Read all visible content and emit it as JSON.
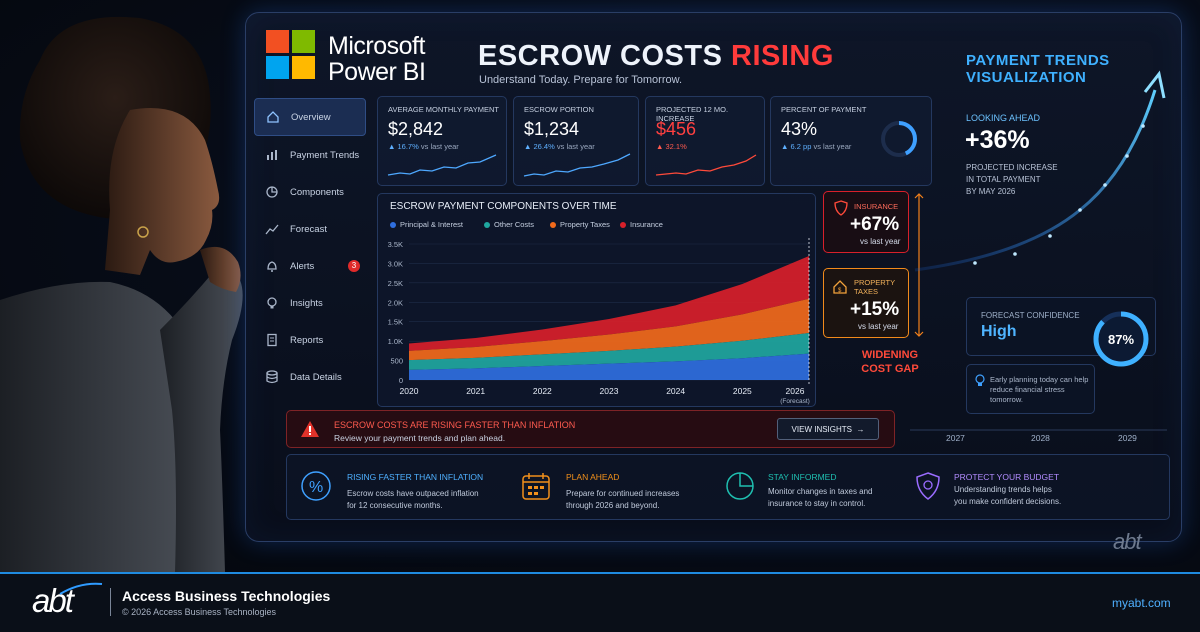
{
  "brand": {
    "line1": "Microsoft",
    "line2": "Power BI",
    "logo_colors": [
      "#f25022",
      "#7fba00",
      "#00a4ef",
      "#ffb900"
    ]
  },
  "header": {
    "title_main": "ESCROW COSTS",
    "title_accent": "RISING",
    "subtitle": "Understand Today.  Prepare for Tomorrow."
  },
  "sidebar": {
    "items": [
      {
        "label": "Overview",
        "icon": "home-icon",
        "active": true
      },
      {
        "label": "Payment Trends",
        "icon": "bar-chart-icon"
      },
      {
        "label": "Components",
        "icon": "pie-chart-icon"
      },
      {
        "label": "Forecast",
        "icon": "trend-line-icon"
      },
      {
        "label": "Alerts",
        "icon": "bell-icon",
        "badge": "3"
      },
      {
        "label": "Insights",
        "icon": "lightbulb-icon"
      },
      {
        "label": "Reports",
        "icon": "document-icon"
      },
      {
        "label": "Data Details",
        "icon": "database-icon"
      }
    ]
  },
  "kpis": [
    {
      "label": "Average Monthly Payment",
      "value": "$2,842",
      "change": "▲ 16.7%",
      "change_sub": "vs last year"
    },
    {
      "label": "Escrow Portion",
      "value": "$1,234",
      "change": "▲ 26.4%",
      "change_sub": "vs last year"
    },
    {
      "label": "Projected 12 Mo. Increase",
      "value": "$456",
      "change": "▲ 32.1%",
      "change_sub": ""
    },
    {
      "label": "Percent of Payment",
      "value": "43%",
      "change": "▲ 6.2 pp",
      "change_sub": "vs last year",
      "gauge_fraction": 0.43
    }
  ],
  "chart_data": {
    "type": "area",
    "title": "Escrow Payment Components Over Time",
    "x": [
      "2020",
      "2021",
      "2022",
      "2023",
      "2024",
      "2025",
      "2026"
    ],
    "x_note": "(Forecast)",
    "ylim": [
      0,
      3500
    ],
    "yticks": [
      0,
      500,
      1000,
      1500,
      2000,
      2500,
      3000,
      3500
    ],
    "ytick_labels": [
      "0",
      "500",
      "1.0K",
      "1.5K",
      "2.0K",
      "2.5K",
      "3.0K",
      "3.5K"
    ],
    "stacked": true,
    "legend_position": "top-left",
    "series": [
      {
        "name": "Principal & Interest",
        "color": "#2f6fe0",
        "values": [
          260,
          300,
          360,
          420,
          480,
          560,
          680
        ]
      },
      {
        "name": "Other Costs",
        "color": "#1fa7a0",
        "values": [
          250,
          270,
          300,
          330,
          380,
          450,
          530
        ]
      },
      {
        "name": "Property Taxes",
        "color": "#f26a1b",
        "values": [
          240,
          280,
          340,
          420,
          520,
          680,
          880
        ]
      },
      {
        "name": "Insurance",
        "color": "#d8202a",
        "values": [
          190,
          230,
          300,
          400,
          540,
          780,
          1100
        ]
      }
    ]
  },
  "callouts": [
    {
      "label": "Insurance",
      "value": "+67%",
      "sub": "vs last year",
      "icon": "shield-icon",
      "color": "#ff3b3b"
    },
    {
      "label_line1": "Property",
      "label_line2": "Taxes",
      "value": "+15%",
      "sub": "vs last year",
      "icon": "house-icon",
      "color": "#f28a1b"
    }
  ],
  "gap_label": {
    "line1": "Widening",
    "line2": "Cost Gap"
  },
  "alert": {
    "title": "Escrow costs are rising faster than inflation",
    "subtitle": "Review your payment trends and plan ahead.",
    "button": "View Insights",
    "button_arrow": "→"
  },
  "tips": [
    {
      "title": "Rising Faster Than Inflation",
      "line1": "Escrow costs have outpaced inflation",
      "line2": "for 12 consecutive months.",
      "icon": "percent-icon",
      "color": "#3fa0ff"
    },
    {
      "title": "Plan Ahead",
      "line1": "Prepare for continued increases",
      "line2": "through 2026 and beyond.",
      "icon": "calendar-icon",
      "color": "#f2901b"
    },
    {
      "title": "Stay Informed",
      "line1": "Monitor changes in taxes and",
      "line2": "insurance to stay in control.",
      "icon": "pie-chart-icon",
      "color": "#1fbfb0"
    },
    {
      "title": "Protect Your Budget",
      "line1": "Understanding trends helps",
      "line2": "you make confident decisions.",
      "icon": "shield-icon",
      "color": "#9a6cff"
    }
  ],
  "trends_panel": {
    "title_line1": "Payment Trends",
    "title_line2": "Visualization",
    "looking_label": "Looking Ahead",
    "looking_value": "+36%",
    "desc_line1": "Projected increase",
    "desc_line2": "in total payment",
    "desc_line3": "by May 2026",
    "forecast_label": "Forecast Confidence",
    "forecast_value": "High",
    "forecast_percent": "87%",
    "forecast_fraction": 0.87,
    "early_text": "Early planning today can help reduce financial stress tomorrow.",
    "years": [
      "2027",
      "2028",
      "2029"
    ]
  },
  "watermark": "abt",
  "footer": {
    "logo": "abt",
    "company": "Access Business Technologies",
    "copyright": "© 2026 Access Business Technologies",
    "url": "myabt.com"
  }
}
